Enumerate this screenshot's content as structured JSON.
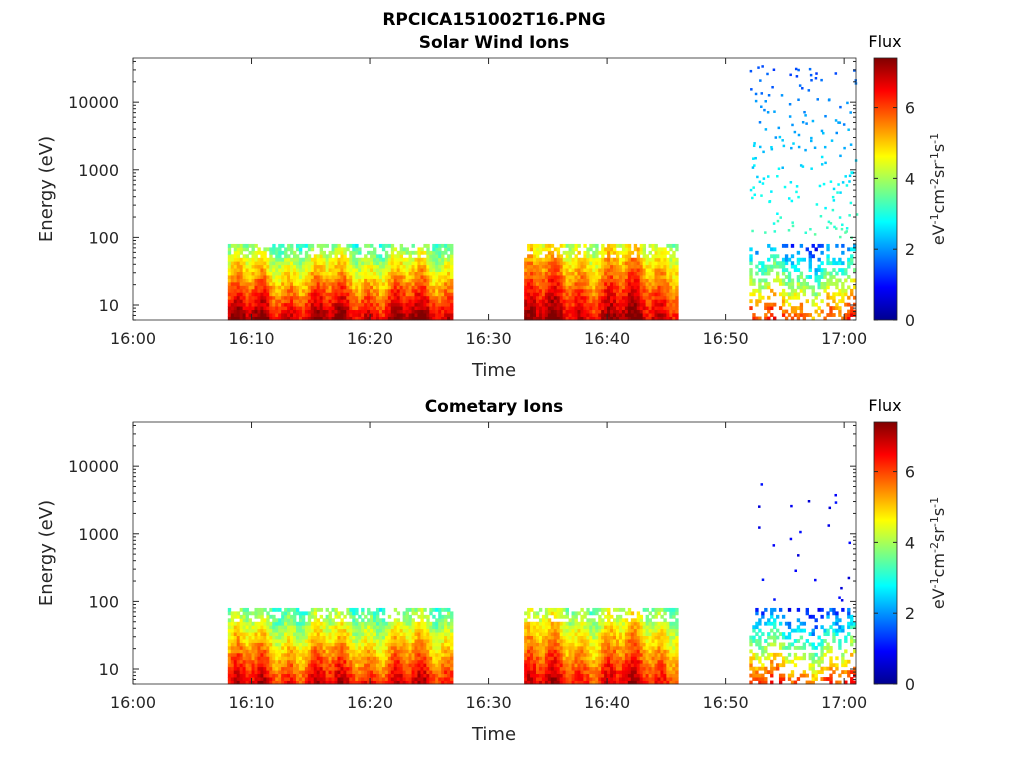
{
  "figure": {
    "filename": "RPCICA151002T16.PNG"
  },
  "colorbar": {
    "label": "Flux",
    "unit_parts": [
      "eV",
      "-1",
      "cm",
      "-2",
      "sr",
      "-1",
      "s",
      "-1"
    ],
    "ticks": [
      "0",
      "2",
      "4",
      "6"
    ],
    "range": [
      0,
      7.4
    ],
    "colormap": "jet"
  },
  "chart_data": [
    {
      "type": "heatmap",
      "title": "Solar Wind Ions",
      "xlabel": "Time",
      "ylabel": "Energy (eV)",
      "x_ticks": [
        "16:00",
        "16:10",
        "16:20",
        "16:30",
        "16:40",
        "16:50",
        "17:00"
      ],
      "xlim": [
        "16:00",
        "17:01"
      ],
      "y_scale": "log",
      "y_ticks": [
        "10",
        "100",
        "1000",
        "10000"
      ],
      "ylim": [
        6,
        45000
      ],
      "data_blocks": [
        {
          "start": "16:08",
          "end": "16:27",
          "energy_max_eV": 80,
          "flux_range": [
            3,
            7
          ]
        },
        {
          "start": "16:33",
          "end": "16:46",
          "energy_max_eV": 80,
          "flux_range": [
            4,
            7
          ]
        },
        {
          "start": "16:52",
          "end": "17:01",
          "energy_max_eV": 40000,
          "flux_range": [
            1,
            6
          ],
          "sparse": true
        }
      ]
    },
    {
      "type": "heatmap",
      "title": "Cometary Ions",
      "xlabel": "Time",
      "ylabel": "Energy (eV)",
      "x_ticks": [
        "16:00",
        "16:10",
        "16:20",
        "16:30",
        "16:40",
        "16:50",
        "17:00"
      ],
      "xlim": [
        "16:00",
        "17:01"
      ],
      "y_scale": "log",
      "y_ticks": [
        "10",
        "100",
        "1000",
        "10000"
      ],
      "ylim": [
        6,
        45000
      ],
      "data_blocks": [
        {
          "start": "16:08",
          "end": "16:27",
          "energy_max_eV": 80,
          "flux_range": [
            3,
            6.5
          ]
        },
        {
          "start": "16:33",
          "end": "16:46",
          "energy_max_eV": 80,
          "flux_range": [
            3.5,
            6.5
          ]
        },
        {
          "start": "16:52",
          "end": "17:01",
          "energy_max_eV": 8000,
          "flux_range": [
            0.5,
            6
          ],
          "sparse": true
        }
      ]
    }
  ]
}
